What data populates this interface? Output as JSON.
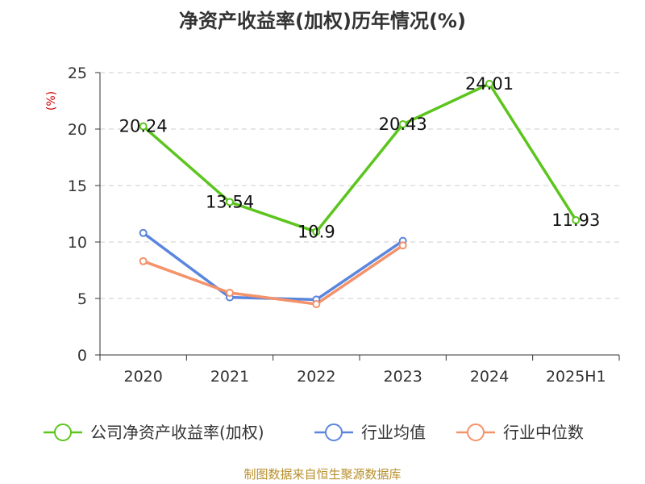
{
  "title": "净资产收益率(加权)历年情况(%)",
  "source": "制图数据来自恒生聚源数据库",
  "colors": {
    "company": "#5cc51e",
    "avg": "#5b86dd",
    "median": "#f4926a",
    "grid": "#cccccc",
    "axis": "#333333"
  },
  "chart_data": {
    "type": "line",
    "title": "净资产收益率(加权)历年情况(%)",
    "ylabel": "(%)",
    "categories": [
      "2020",
      "2021",
      "2022",
      "2023",
      "2024",
      "2025H1"
    ],
    "ylim": [
      0,
      25
    ],
    "yticks": [
      0,
      5,
      10,
      15,
      20,
      25
    ],
    "grid": true,
    "legend_position": "bottom",
    "series": [
      {
        "key": "company",
        "name": "公司净资产收益率(加权)",
        "values": [
          20.24,
          13.54,
          10.9,
          20.43,
          24.01,
          11.93
        ],
        "labels": [
          "20.24",
          "13.54",
          "10.9",
          "20.43",
          "24.01",
          "11.93"
        ]
      },
      {
        "key": "avg",
        "name": "行业均值",
        "values": [
          10.8,
          5.1,
          4.9,
          10.1,
          null,
          null
        ]
      },
      {
        "key": "median",
        "name": "行业中位数",
        "values": [
          8.3,
          5.5,
          4.5,
          9.7,
          null,
          null
        ]
      }
    ]
  }
}
